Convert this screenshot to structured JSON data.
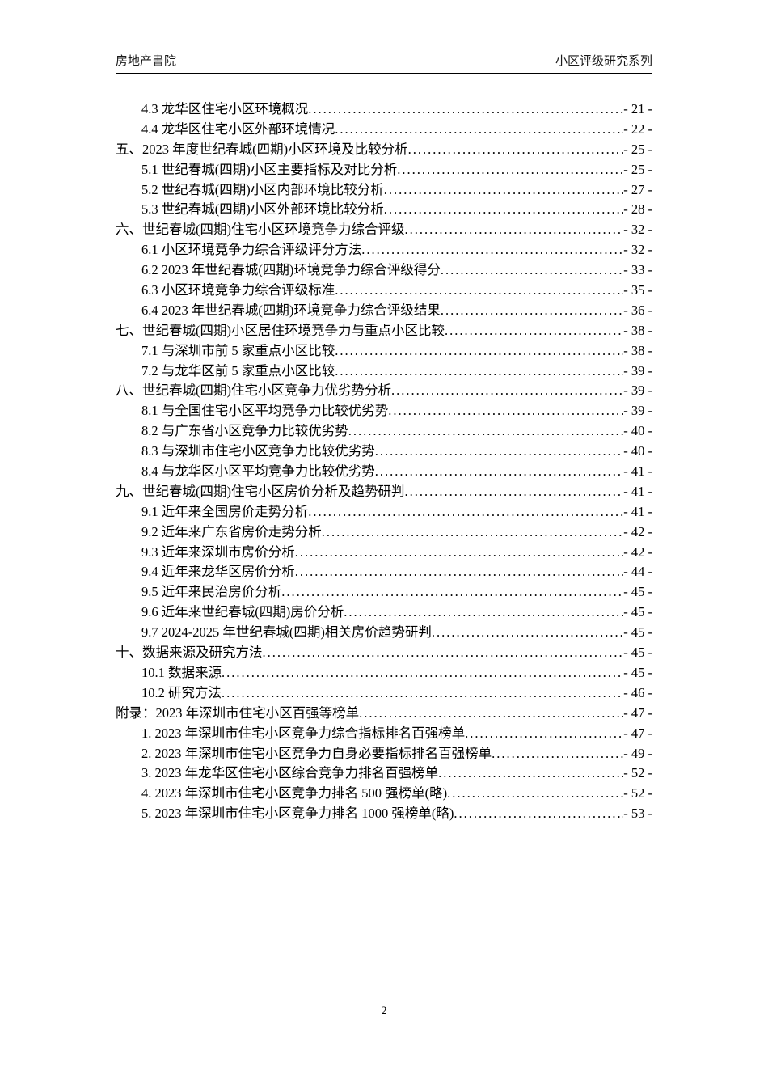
{
  "header": {
    "left": "房地产書院",
    "right": "小区评级研究系列"
  },
  "footer": {
    "page_number": "2"
  },
  "toc": {
    "entries": [
      {
        "level": 2,
        "text": "4.3 龙华区住宅小区环境概况",
        "page": "- 21 -"
      },
      {
        "level": 2,
        "text": "4.4 龙华区住宅小区外部环境情况",
        "page": "- 22 -"
      },
      {
        "level": 1,
        "text": "五、2023 年度世纪春城(四期)小区环境及比较分析",
        "page": "- 25 -"
      },
      {
        "level": 2,
        "text": "5.1 世纪春城(四期)小区主要指标及对比分析",
        "page": "- 25 -"
      },
      {
        "level": 2,
        "text": "5.2 世纪春城(四期)小区内部环境比较分析",
        "page": "- 27 -"
      },
      {
        "level": 2,
        "text": "5.3 世纪春城(四期)小区外部环境比较分析",
        "page": "- 28 -"
      },
      {
        "level": 1,
        "text": "六、世纪春城(四期)住宅小区环境竞争力综合评级",
        "page": "- 32 -"
      },
      {
        "level": 2,
        "text": "6.1 小区环境竞争力综合评级评分方法",
        "page": "- 32 -"
      },
      {
        "level": 2,
        "text": "6.2 2023 年世纪春城(四期)环境竞争力综合评级得分",
        "page": "- 33 -"
      },
      {
        "level": 2,
        "text": "6.3 小区环境竞争力综合评级标准",
        "page": "- 35 -"
      },
      {
        "level": 2,
        "text": "6.4 2023 年世纪春城(四期)环境竞争力综合评级结果",
        "page": "- 36 -"
      },
      {
        "level": 1,
        "text": "七、世纪春城(四期)小区居住环境竞争力与重点小区比较",
        "page": "- 38 -"
      },
      {
        "level": 2,
        "text": "7.1 与深圳市前 5 家重点小区比较",
        "page": "- 38 -"
      },
      {
        "level": 2,
        "text": "7.2 与龙华区前 5 家重点小区比较",
        "page": "- 39 -"
      },
      {
        "level": 1,
        "text": "八、世纪春城(四期)住宅小区竞争力优劣势分析",
        "page": "- 39 -"
      },
      {
        "level": 2,
        "text": "8.1 与全国住宅小区平均竞争力比较优劣势",
        "page": "- 39 -"
      },
      {
        "level": 2,
        "text": "8.2 与广东省小区竞争力比较优劣势",
        "page": "- 40 -"
      },
      {
        "level": 2,
        "text": "8.3 与深圳市住宅小区竞争力比较优劣势",
        "page": "- 40 -"
      },
      {
        "level": 2,
        "text": "8.4 与龙华区小区平均竞争力比较优劣势",
        "page": "- 41 -"
      },
      {
        "level": 1,
        "text": "九、世纪春城(四期)住宅小区房价分析及趋势研判",
        "page": "- 41 -"
      },
      {
        "level": 2,
        "text": "9.1 近年来全国房价走势分析",
        "page": "- 41 -"
      },
      {
        "level": 2,
        "text": "9.2 近年来广东省房价走势分析",
        "page": "- 42 -"
      },
      {
        "level": 2,
        "text": "9.3 近年来深圳市房价分析",
        "page": "- 42 -"
      },
      {
        "level": 2,
        "text": "9.4 近年来龙华区房价分析",
        "page": "- 44 -"
      },
      {
        "level": 2,
        "text": "9.5 近年来民治房价分析",
        "page": "- 45 -"
      },
      {
        "level": 2,
        "text": "9.6 近年来世纪春城(四期)房价分析",
        "page": "- 45 -"
      },
      {
        "level": 2,
        "text": "9.7 2024-2025 年世纪春城(四期)相关房价趋势研判",
        "page": "- 45 -"
      },
      {
        "level": 1,
        "text": "十、数据来源及研究方法",
        "page": "- 45 -"
      },
      {
        "level": 2,
        "text": "10.1 数据来源",
        "page": "- 45 -"
      },
      {
        "level": 2,
        "text": "10.2 研究方法",
        "page": "- 46 -"
      },
      {
        "level": 1,
        "text": "附录：2023 年深圳市住宅小区百强等榜单",
        "page": "- 47 -"
      },
      {
        "level": 2,
        "text": "1. 2023 年深圳市住宅小区竞争力综合指标排名百强榜单",
        "page": "- 47 -"
      },
      {
        "level": 2,
        "text": "2. 2023 年深圳市住宅小区竞争力自身必要指标排名百强榜单",
        "page": "- 49 -"
      },
      {
        "level": 2,
        "text": "3. 2023 年龙华区住宅小区综合竞争力排名百强榜单",
        "page": "- 52 -"
      },
      {
        "level": 2,
        "text": "4. 2023 年深圳市住宅小区竞争力排名 500 强榜单(略)",
        "page": "- 52 -"
      },
      {
        "level": 2,
        "text": "5. 2023 年深圳市住宅小区竞争力排名 1000 强榜单(略)",
        "page": "- 53 -"
      }
    ]
  }
}
